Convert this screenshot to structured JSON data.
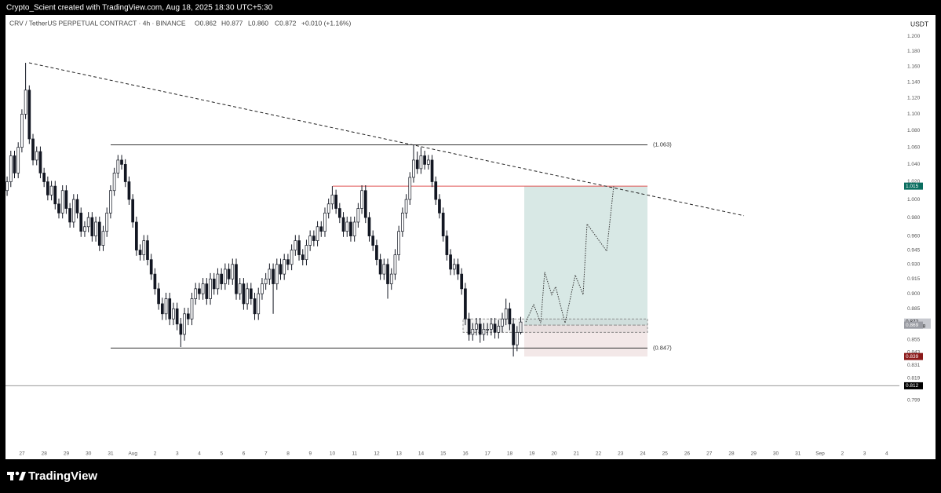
{
  "chart_data": {
    "type": "candlestick",
    "attribution": "Crypto_Scient created with TradingView.com, Aug 18, 2025 18:30 UTC+5:30",
    "symbol": "CRV / TetherUS PERPETUAL CONTRACT · 4h · BINANCE",
    "ohlc_legend": [
      "O0.862",
      "H0.877",
      "L0.860",
      "C0.872",
      "+0.010 (+1.16%)"
    ],
    "currency": "USDT",
    "brand": "TradingView",
    "log_scale": true,
    "ylim": [
      0.748,
      1.228
    ],
    "yticks": [
      {
        "value": 1.2,
        "label": "1.200"
      },
      {
        "value": 1.18,
        "label": "1.180"
      },
      {
        "value": 1.16,
        "label": "1.160"
      },
      {
        "value": 1.14,
        "label": "1.140"
      },
      {
        "value": 1.12,
        "label": "1.120"
      },
      {
        "value": 1.1,
        "label": "1.100"
      },
      {
        "value": 1.08,
        "label": "1.080"
      },
      {
        "value": 1.06,
        "label": "1.060"
      },
      {
        "value": 1.04,
        "label": "1.040"
      },
      {
        "value": 1.02,
        "label": "1.020"
      },
      {
        "value": 1.0,
        "label": "1.000"
      },
      {
        "value": 0.98,
        "label": "0.980"
      },
      {
        "value": 0.96,
        "label": "0.960"
      },
      0.945,
      {
        "value": 0.93,
        "label": "0.930"
      },
      0.915,
      {
        "value": 0.9,
        "label": "0.900"
      },
      0.885,
      0.855,
      0.843,
      0.831,
      0.819,
      0.799
    ],
    "categories": [
      "27",
      "28",
      "29",
      "30",
      "31",
      "Aug",
      "2",
      "3",
      "4",
      "5",
      "6",
      "7",
      "8",
      "9",
      "10",
      "11",
      "12",
      "13",
      "14",
      "15",
      "16",
      "17",
      "18",
      "19",
      "20",
      "21",
      "22",
      "23",
      "24",
      "25",
      "26",
      "27",
      "28",
      "29",
      "30",
      "31",
      "Sep",
      "2",
      "3",
      "4"
    ],
    "up_color": "#ffffff",
    "down_color": "#131722",
    "candles": [
      [
        1.01,
        1.026,
        1.004,
        1.02
      ],
      [
        1.02,
        1.056,
        1.014,
        1.05
      ],
      [
        1.05,
        1.056,
        1.024,
        1.03
      ],
      [
        1.03,
        1.066,
        1.024,
        1.06
      ],
      [
        1.06,
        1.106,
        1.054,
        1.1
      ],
      [
        1.1,
        1.165,
        1.094,
        1.13
      ],
      [
        1.13,
        1.136,
        1.064,
        1.07
      ],
      [
        1.07,
        1.076,
        1.039,
        1.045
      ],
      [
        1.045,
        1.061,
        1.039,
        1.055
      ],
      [
        1.055,
        1.061,
        1.024,
        1.03
      ],
      [
        1.03,
        1.036,
        1.014,
        1.02
      ],
      [
        1.02,
        1.026,
        0.999,
        1.005
      ],
      [
        1.005,
        1.021,
        0.999,
        1.015
      ],
      [
        1.015,
        1.021,
        0.989,
        0.995
      ],
      [
        0.995,
        1.001,
        0.979,
        0.985
      ],
      [
        0.985,
        1.016,
        0.979,
        1.01
      ],
      [
        1.01,
        1.016,
        0.984,
        0.99
      ],
      [
        0.99,
        0.996,
        0.969,
        0.975
      ],
      [
        0.975,
        1.006,
        0.969,
        1.0
      ],
      [
        1.0,
        1.006,
        0.979,
        0.985
      ],
      [
        0.985,
        0.991,
        0.959,
        0.965
      ],
      [
        0.965,
        0.976,
        0.959,
        0.97
      ],
      [
        0.97,
        0.986,
        0.964,
        0.98
      ],
      [
        0.98,
        0.986,
        0.954,
        0.96
      ],
      [
        0.96,
        0.981,
        0.954,
        0.975
      ],
      [
        0.975,
        0.981,
        0.944,
        0.95
      ],
      [
        0.95,
        0.971,
        0.944,
        0.965
      ],
      [
        0.965,
        0.991,
        0.959,
        0.985
      ],
      [
        0.985,
        1.016,
        0.979,
        1.01
      ],
      [
        1.01,
        1.036,
        1.004,
        1.03
      ],
      [
        1.03,
        1.051,
        1.024,
        1.045
      ],
      [
        1.045,
        1.051,
        1.034,
        1.04
      ],
      [
        1.04,
        1.046,
        1.014,
        1.02
      ],
      [
        1.02,
        1.026,
        0.994,
        1.0
      ],
      [
        1.0,
        1.006,
        0.969,
        0.975
      ],
      [
        0.975,
        0.981,
        0.939,
        0.945
      ],
      [
        0.945,
        0.951,
        0.934,
        0.94
      ],
      [
        0.94,
        0.961,
        0.934,
        0.955
      ],
      [
        0.955,
        0.961,
        0.929,
        0.935
      ],
      [
        0.935,
        0.941,
        0.914,
        0.92
      ],
      [
        0.92,
        0.926,
        0.899,
        0.905
      ],
      [
        0.905,
        0.911,
        0.884,
        0.89
      ],
      [
        0.89,
        0.896,
        0.874,
        0.88
      ],
      [
        0.88,
        0.901,
        0.874,
        0.895
      ],
      [
        0.895,
        0.901,
        0.869,
        0.875
      ],
      [
        0.875,
        0.891,
        0.869,
        0.885
      ],
      [
        0.885,
        0.891,
        0.864,
        0.87
      ],
      [
        0.87,
        0.876,
        0.848,
        0.86
      ],
      [
        0.86,
        0.886,
        0.854,
        0.88
      ],
      [
        0.88,
        0.886,
        0.869,
        0.875
      ],
      [
        0.875,
        0.901,
        0.869,
        0.895
      ],
      [
        0.895,
        0.911,
        0.889,
        0.905
      ],
      [
        0.905,
        0.911,
        0.894,
        0.9
      ],
      [
        0.9,
        0.916,
        0.894,
        0.91
      ],
      [
        0.91,
        0.916,
        0.889,
        0.895
      ],
      [
        0.895,
        0.921,
        0.889,
        0.915
      ],
      [
        0.915,
        0.921,
        0.899,
        0.905
      ],
      [
        0.905,
        0.926,
        0.899,
        0.92
      ],
      [
        0.92,
        0.926,
        0.904,
        0.91
      ],
      [
        0.91,
        0.931,
        0.904,
        0.925
      ],
      [
        0.925,
        0.931,
        0.909,
        0.915
      ],
      [
        0.915,
        0.936,
        0.909,
        0.93
      ],
      [
        0.93,
        0.936,
        0.894,
        0.9
      ],
      [
        0.9,
        0.916,
        0.894,
        0.91
      ],
      [
        0.91,
        0.916,
        0.884,
        0.89
      ],
      [
        0.89,
        0.911,
        0.884,
        0.905
      ],
      [
        0.905,
        0.911,
        0.889,
        0.895
      ],
      [
        0.895,
        0.901,
        0.874,
        0.88
      ],
      [
        0.88,
        0.906,
        0.874,
        0.9
      ],
      [
        0.9,
        0.916,
        0.894,
        0.91
      ],
      [
        0.91,
        0.921,
        0.904,
        0.915
      ],
      [
        0.915,
        0.931,
        0.909,
        0.925
      ],
      [
        0.925,
        0.931,
        0.88,
        0.91
      ],
      [
        0.91,
        0.936,
        0.904,
        0.93
      ],
      [
        0.93,
        0.936,
        0.914,
        0.92
      ],
      [
        0.92,
        0.941,
        0.914,
        0.935
      ],
      [
        0.935,
        0.941,
        0.924,
        0.93
      ],
      [
        0.93,
        0.951,
        0.924,
        0.945
      ],
      [
        0.945,
        0.961,
        0.939,
        0.955
      ],
      [
        0.955,
        0.961,
        0.934,
        0.94
      ],
      [
        0.94,
        0.946,
        0.929,
        0.935
      ],
      [
        0.935,
        0.956,
        0.929,
        0.95
      ],
      [
        0.95,
        0.966,
        0.944,
        0.96
      ],
      [
        0.96,
        0.966,
        0.949,
        0.955
      ],
      [
        0.955,
        0.976,
        0.949,
        0.97
      ],
      [
        0.97,
        0.976,
        0.959,
        0.965
      ],
      [
        0.965,
        0.991,
        0.959,
        0.985
      ],
      [
        0.985,
        1.001,
        0.979,
        0.995
      ],
      [
        0.995,
        1.015,
        0.989,
        1.005
      ],
      [
        1.005,
        1.011,
        0.984,
        0.99
      ],
      [
        0.99,
        0.996,
        0.974,
        0.98
      ],
      [
        0.98,
        0.986,
        0.959,
        0.965
      ],
      [
        0.965,
        0.981,
        0.959,
        0.975
      ],
      [
        0.975,
        0.981,
        0.954,
        0.96
      ],
      [
        0.96,
        0.981,
        0.954,
        0.975
      ],
      [
        0.975,
        0.996,
        0.969,
        0.99
      ],
      [
        0.99,
        1.016,
        0.984,
        1.01
      ],
      [
        1.01,
        1.016,
        0.974,
        0.98
      ],
      [
        0.98,
        0.986,
        0.954,
        0.96
      ],
      [
        0.96,
        0.966,
        0.944,
        0.95
      ],
      [
        0.95,
        0.956,
        0.929,
        0.935
      ],
      [
        0.935,
        0.941,
        0.914,
        0.92
      ],
      [
        0.92,
        0.936,
        0.914,
        0.93
      ],
      [
        0.93,
        0.936,
        0.895,
        0.91
      ],
      [
        0.91,
        0.926,
        0.904,
        0.92
      ],
      [
        0.92,
        0.946,
        0.914,
        0.94
      ],
      [
        0.94,
        0.971,
        0.934,
        0.965
      ],
      [
        0.965,
        0.991,
        0.959,
        0.985
      ],
      [
        0.985,
        1.006,
        0.979,
        1.0
      ],
      [
        1.0,
        1.031,
        0.994,
        1.025
      ],
      [
        1.025,
        1.063,
        1.019,
        1.045
      ],
      [
        1.045,
        1.055,
        1.029,
        1.035
      ],
      [
        1.035,
        1.06,
        1.029,
        1.05
      ],
      [
        1.05,
        1.056,
        1.034,
        1.04
      ],
      [
        1.04,
        1.051,
        1.034,
        1.045
      ],
      [
        1.045,
        1.051,
        1.014,
        1.02
      ],
      [
        1.02,
        1.026,
        0.994,
        1.0
      ],
      [
        1.0,
        1.006,
        0.979,
        0.985
      ],
      [
        0.985,
        0.991,
        0.954,
        0.96
      ],
      [
        0.96,
        0.966,
        0.934,
        0.94
      ],
      [
        0.94,
        0.946,
        0.919,
        0.925
      ],
      [
        0.925,
        0.936,
        0.919,
        0.93
      ],
      [
        0.93,
        0.936,
        0.914,
        0.92
      ],
      [
        0.92,
        0.926,
        0.899,
        0.905
      ],
      [
        0.905,
        0.911,
        0.869,
        0.875
      ],
      [
        0.875,
        0.881,
        0.854,
        0.86
      ],
      [
        0.86,
        0.871,
        0.854,
        0.865
      ],
      [
        0.865,
        0.876,
        0.859,
        0.87
      ],
      [
        0.87,
        0.876,
        0.852,
        0.86
      ],
      [
        0.86,
        0.871,
        0.854,
        0.865
      ],
      [
        0.865,
        0.871,
        0.859,
        0.865
      ],
      [
        0.865,
        0.876,
        0.859,
        0.87
      ],
      [
        0.87,
        0.876,
        0.856,
        0.862
      ],
      [
        0.862,
        0.874,
        0.856,
        0.868
      ],
      [
        0.868,
        0.881,
        0.862,
        0.875
      ],
      [
        0.875,
        0.895,
        0.869,
        0.885
      ],
      [
        0.885,
        0.891,
        0.864,
        0.87
      ],
      [
        0.87,
        0.876,
        0.839,
        0.85
      ],
      [
        0.85,
        0.868,
        0.844,
        0.862
      ],
      [
        0.862,
        0.877,
        0.86,
        0.872
      ]
    ],
    "trendline": {
      "start": 1.165,
      "end": 0.982
    },
    "resistance": {
      "value": 1.063,
      "label": "(1.063)"
    },
    "support": {
      "value": 0.847,
      "label": "(0.847)"
    },
    "red_level": 1.015,
    "consolidation": {
      "low": 0.862,
      "high": 0.875
    },
    "position": {
      "entry": 0.869,
      "target": 1.015,
      "stop": 0.839
    },
    "projection": [
      0.872,
      0.889,
      0.871,
      0.922,
      0.899,
      0.907,
      0.871,
      0.919,
      0.899,
      0.973,
      0.944,
      1.015
    ],
    "last_price": 0.872,
    "countdown": "02:59:58",
    "baseline": 0.812,
    "teal": "#0b6e60",
    "loss_color": "#8b1a1a"
  }
}
